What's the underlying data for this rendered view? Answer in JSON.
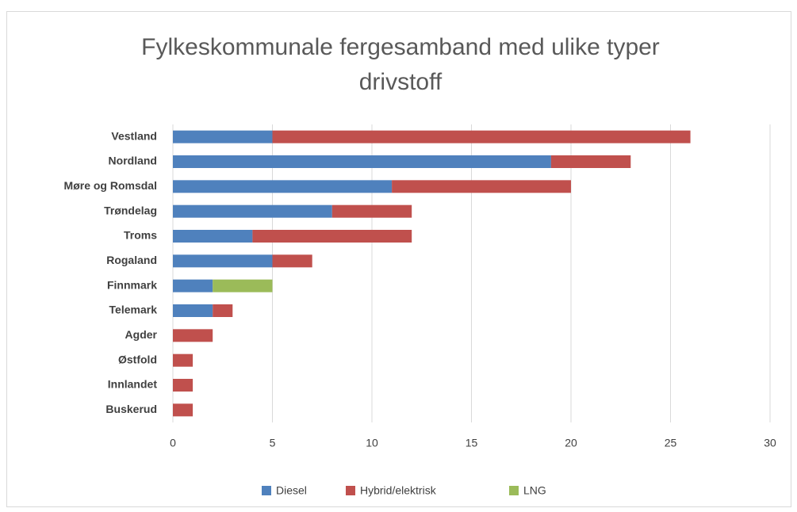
{
  "chart_data": {
    "type": "stacked_barh",
    "title": "Fylkeskommunale fergesamband med ulike typer drivstoff",
    "categories": [
      "Vestland",
      "Nordland",
      "Møre og Romsdal",
      "Trøndelag",
      "Troms",
      "Rogaland",
      "Finnmark",
      "Telemark",
      "Agder",
      "Østfold",
      "Innlandet",
      "Buskerud"
    ],
    "series": [
      {
        "name": "Diesel",
        "color": "#4f81bd",
        "values": [
          5,
          19,
          11,
          8,
          4,
          5,
          2,
          2,
          0,
          0,
          0,
          0
        ]
      },
      {
        "name": "Hybrid/elektrisk",
        "color": "#c0504d",
        "values": [
          21,
          4,
          9,
          4,
          8,
          2,
          0,
          1,
          2,
          1,
          1,
          1
        ]
      },
      {
        "name": "LNG",
        "color": "#9bbb59",
        "values": [
          0,
          0,
          0,
          0,
          0,
          0,
          3,
          0,
          0,
          0,
          0,
          0
        ]
      }
    ],
    "xlim": [
      0,
      30
    ],
    "xticks": [
      0,
      5,
      10,
      15,
      20,
      25,
      30
    ],
    "grid": true,
    "legend": "bottom"
  }
}
